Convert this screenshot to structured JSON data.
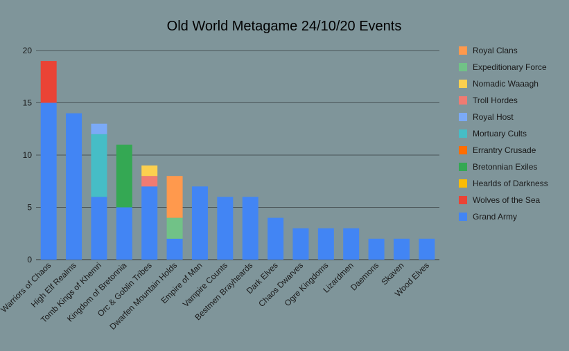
{
  "chart_data": {
    "type": "bar",
    "stacked": true,
    "title": "Old World Metagame 24/10/20 Events",
    "xlabel": "",
    "ylabel": "",
    "ylim": [
      0,
      20
    ],
    "yticks": [
      0,
      5,
      10,
      15,
      20
    ],
    "grid": true,
    "legend_position": "right",
    "background": "#7f959a",
    "categories": [
      "Warriors of Chaos",
      "High Elf Realms",
      "Tomb Kings of Khemri",
      "Kingdom of Bretonnia",
      "Orc & Goblin Tribes",
      "Dwarfen Mountain Holds",
      "Empire of Man",
      "Vampire Counts",
      "Bestmen Brayheards",
      "Dark Elves",
      "Chaos Dwarves",
      "Ogre Kingdoms",
      "Lizardmen",
      "Daemons",
      "Skaven",
      "Wood Elves"
    ],
    "series": [
      {
        "name": "Grand Army",
        "color": "#4285f4",
        "values": [
          15,
          14,
          6,
          5,
          7,
          2,
          7,
          6,
          6,
          4,
          3,
          3,
          3,
          2,
          2,
          2
        ]
      },
      {
        "name": "Wolves of the Sea",
        "color": "#ea4335",
        "values": [
          4,
          0,
          0,
          0,
          0,
          0,
          0,
          0,
          0,
          0,
          0,
          0,
          0,
          0,
          0,
          0
        ]
      },
      {
        "name": "Hearlds of Darkness",
        "color": "#fbbc04",
        "values": [
          0,
          0,
          0,
          0,
          0,
          0,
          0,
          0,
          0,
          0,
          0,
          0,
          0,
          0,
          0,
          0
        ]
      },
      {
        "name": "Bretonnian Exiles",
        "color": "#34a853",
        "values": [
          0,
          0,
          0,
          6,
          0,
          0,
          0,
          0,
          0,
          0,
          0,
          0,
          0,
          0,
          0,
          0
        ]
      },
      {
        "name": "Errantry Crusade",
        "color": "#ff6d01",
        "values": [
          0,
          0,
          0,
          0,
          0,
          0,
          0,
          0,
          0,
          0,
          0,
          0,
          0,
          0,
          0,
          0
        ]
      },
      {
        "name": "Mortuary Cults",
        "color": "#46bdc6",
        "values": [
          0,
          0,
          6,
          0,
          0,
          0,
          0,
          0,
          0,
          0,
          0,
          0,
          0,
          0,
          0,
          0
        ]
      },
      {
        "name": "Royal Host",
        "color": "#7baaf7",
        "values": [
          0,
          0,
          1,
          0,
          0,
          0,
          0,
          0,
          0,
          0,
          0,
          0,
          0,
          0,
          0,
          0
        ]
      },
      {
        "name": "Troll Hordes",
        "color": "#f07b72",
        "values": [
          0,
          0,
          0,
          0,
          1,
          0,
          0,
          0,
          0,
          0,
          0,
          0,
          0,
          0,
          0,
          0
        ]
      },
      {
        "name": "Nomadic Waaagh",
        "color": "#fcd04f",
        "values": [
          0,
          0,
          0,
          0,
          1,
          0,
          0,
          0,
          0,
          0,
          0,
          0,
          0,
          0,
          0,
          0
        ]
      },
      {
        "name": "Expeditionary Force",
        "color": "#71c287",
        "values": [
          0,
          0,
          0,
          0,
          0,
          2,
          0,
          0,
          0,
          0,
          0,
          0,
          0,
          0,
          0,
          0
        ]
      },
      {
        "name": "Royal Clans",
        "color": "#ff994d",
        "values": [
          0,
          0,
          0,
          0,
          0,
          4,
          0,
          0,
          0,
          0,
          0,
          0,
          0,
          0,
          0,
          0
        ]
      }
    ]
  }
}
